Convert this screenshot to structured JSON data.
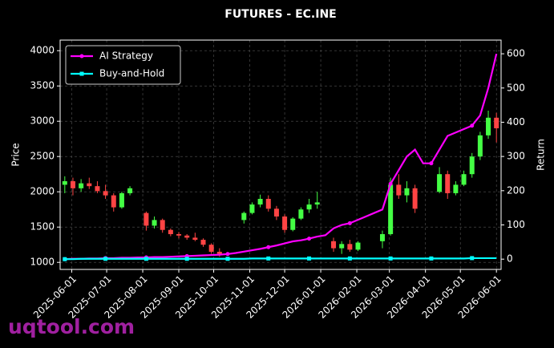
{
  "chart_data": {
    "type": "candlestick",
    "title": "FUTURES - EC.INE",
    "y_label": "Price",
    "y2_label": "Return",
    "watermark": "uqtool.com",
    "x": [
      "2025-05-26",
      "2025-06-02",
      "2025-06-09",
      "2025-06-16",
      "2025-06-23",
      "2025-06-30",
      "2025-07-07",
      "2025-07-14",
      "2025-07-21",
      "2025-07-28",
      "2025-08-04",
      "2025-08-11",
      "2025-08-18",
      "2025-08-25",
      "2025-09-01",
      "2025-09-08",
      "2025-09-15",
      "2025-09-22",
      "2025-09-29",
      "2025-10-06",
      "2025-10-13",
      "2025-10-20",
      "2025-10-27",
      "2025-11-03",
      "2025-11-10",
      "2025-11-17",
      "2025-11-24",
      "2025-12-01",
      "2025-12-08",
      "2025-12-15",
      "2025-12-22",
      "2025-12-29",
      "2026-01-05",
      "2026-01-12",
      "2026-01-19",
      "2026-01-26",
      "2026-02-02",
      "2026-02-09",
      "2026-02-16",
      "2026-02-23",
      "2026-03-02",
      "2026-03-09",
      "2026-03-16",
      "2026-03-23",
      "2026-03-30",
      "2026-04-06",
      "2026-04-13",
      "2026-04-20",
      "2026-04-27",
      "2026-05-04",
      "2026-05-11",
      "2026-05-18",
      "2026-05-25",
      "2026-06-01"
    ],
    "open": [
      2100,
      2150,
      2050,
      2120,
      2080,
      2010,
      1950,
      1780,
      1980,
      null,
      1700,
      1520,
      1600,
      1460,
      1400,
      1380,
      1350,
      1320,
      1250,
      1150,
      null,
      null,
      1600,
      1700,
      1820,
      1900,
      1760,
      1650,
      1460,
      1620,
      1750,
      1820,
      null,
      1300,
      1200,
      1260,
      1180,
      null,
      null,
      1300,
      1400,
      2100,
      1950,
      2050,
      null,
      null,
      2000,
      2250,
      1980,
      2100,
      2250,
      2500,
      2800,
      3050
    ],
    "high": [
      2220,
      2200,
      2180,
      2200,
      2150,
      2100,
      1980,
      2000,
      2080,
      null,
      1720,
      1650,
      1620,
      1480,
      1430,
      1400,
      1420,
      1340,
      1270,
      1200,
      null,
      null,
      1720,
      1850,
      1960,
      1950,
      1800,
      1680,
      1640,
      1780,
      1900,
      2000,
      null,
      1350,
      1300,
      1320,
      1300,
      null,
      null,
      1450,
      2200,
      2250,
      2150,
      2100,
      null,
      null,
      2350,
      2300,
      2150,
      2300,
      2550,
      2850,
      3150,
      3120
    ],
    "low": [
      1980,
      1950,
      2000,
      2040,
      1980,
      1900,
      1720,
      1760,
      1950,
      null,
      1450,
      1480,
      1420,
      1370,
      1340,
      1320,
      1300,
      1220,
      1120,
      1080,
      null,
      null,
      1550,
      1680,
      1780,
      1720,
      1600,
      1420,
      1440,
      1600,
      1700,
      1760,
      null,
      1150,
      1120,
      1150,
      1160,
      null,
      null,
      1200,
      1380,
      1900,
      1850,
      1700,
      null,
      null,
      1980,
      1900,
      1950,
      2080,
      2200,
      2450,
      2750,
      2700
    ],
    "close": [
      2150,
      2050,
      2120,
      2080,
      2010,
      1950,
      1780,
      1980,
      2050,
      null,
      1520,
      1600,
      1460,
      1400,
      1380,
      1350,
      1320,
      1250,
      1150,
      1120,
      null,
      null,
      1700,
      1820,
      1900,
      1760,
      1650,
      1460,
      1620,
      1750,
      1820,
      1850,
      null,
      1200,
      1260,
      1180,
      1280,
      null,
      null,
      1400,
      2100,
      1950,
      2050,
      1760,
      null,
      null,
      2250,
      1980,
      2100,
      2250,
      2500,
      2800,
      3050,
      2900
    ],
    "up_color": "#44ff44",
    "down_color": "#ff4444",
    "series": [
      {
        "name": "AI Strategy",
        "color": "#ff00ff",
        "axis": "y2",
        "marker": "circle",
        "values": [
          0,
          1,
          1,
          2,
          2,
          3,
          3,
          4,
          4,
          5,
          5,
          6,
          6,
          7,
          8,
          9,
          10,
          11,
          12,
          13,
          15,
          18,
          22,
          26,
          30,
          35,
          40,
          46,
          52,
          55,
          60,
          66,
          70,
          90,
          100,
          105,
          115,
          125,
          135,
          145,
          220,
          260,
          300,
          320,
          280,
          280,
          320,
          360,
          370,
          380,
          390,
          420,
          500,
          600
        ]
      },
      {
        "name": "Buy-and-Hold",
        "color": "#00ffff",
        "axis": "y2",
        "marker": "square",
        "values": [
          0,
          0,
          1,
          1,
          1,
          1,
          1,
          1,
          1,
          1,
          1,
          1,
          1,
          1,
          1,
          1,
          1,
          1,
          1,
          1,
          1,
          1,
          1,
          2,
          2,
          2,
          2,
          2,
          2,
          2,
          2,
          2,
          2,
          2,
          2,
          2,
          2,
          2,
          2,
          2,
          2,
          2,
          2,
          2,
          2,
          2,
          2,
          2,
          2,
          2,
          3,
          3,
          3,
          3
        ]
      }
    ],
    "xlim": [
      "2025-05-22",
      "2026-06-05"
    ],
    "xticks": [
      "2025-06-01",
      "2025-07-01",
      "2025-08-01",
      "2025-09-01",
      "2025-10-01",
      "2025-11-01",
      "2025-12-01",
      "2026-01-01",
      "2026-02-01",
      "2026-03-01",
      "2026-04-01",
      "2026-05-01",
      "2026-06-01"
    ],
    "ylim": [
      900,
      4150
    ],
    "yticks": [
      1000,
      1500,
      2000,
      2500,
      3000,
      3500,
      4000
    ],
    "y2lim": [
      -30,
      640
    ],
    "y2ticks": [
      0,
      100,
      200,
      300,
      400,
      500,
      600
    ],
    "grid": true,
    "legend": "upper left"
  }
}
